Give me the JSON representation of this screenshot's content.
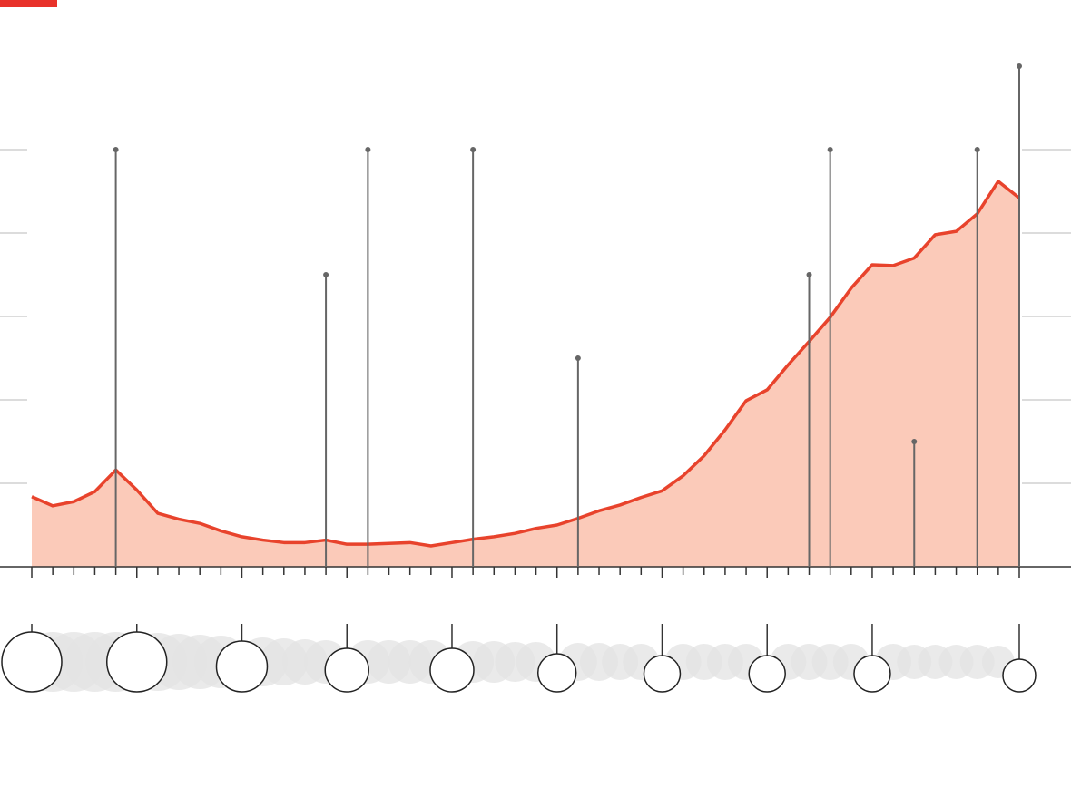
{
  "chart_data": {
    "type": "area",
    "values": [
      0.84,
      0.73,
      0.78,
      0.9,
      1.16,
      0.92,
      0.64,
      0.57,
      0.52,
      0.43,
      0.36,
      0.32,
      0.29,
      0.29,
      0.32,
      0.27,
      0.27,
      0.28,
      0.29,
      0.25,
      0.29,
      0.33,
      0.36,
      0.4,
      0.46,
      0.5,
      0.58,
      0.67,
      0.74,
      0.83,
      0.91,
      1.09,
      1.33,
      1.64,
      1.99,
      2.12,
      2.42,
      2.7,
      2.99,
      3.34,
      3.62,
      3.61,
      3.7,
      3.98,
      4.02,
      4.23,
      4.62,
      4.42
    ],
    "color": "#e8432c",
    "fill": "#fbcab9",
    "ylim": [
      0,
      6.5
    ],
    "yticks": [
      1,
      2,
      3,
      4,
      5
    ],
    "grid": true,
    "events": {
      "x": [
        4,
        14,
        16,
        21,
        26,
        37,
        38,
        42,
        45,
        47
      ],
      "values": [
        5,
        3.5,
        5,
        5,
        2.5,
        3.5,
        5,
        1.5,
        5,
        6
      ],
      "color": "#666666"
    },
    "bubbles": {
      "sizes": [
        33,
        33,
        33,
        33,
        33,
        33,
        32,
        31,
        30,
        29,
        28,
        27,
        26,
        25,
        24,
        24,
        24,
        24,
        24,
        24,
        24,
        23,
        23,
        22,
        22,
        21,
        21,
        21,
        20,
        20,
        20,
        20,
        20,
        20,
        20,
        20,
        20,
        20,
        20,
        20,
        20,
        20,
        19,
        19,
        19,
        19,
        18,
        18
      ],
      "highlight": [
        0,
        5,
        10,
        15,
        20,
        25,
        30,
        35,
        40,
        47
      ],
      "color": "#e3e3e3"
    }
  }
}
